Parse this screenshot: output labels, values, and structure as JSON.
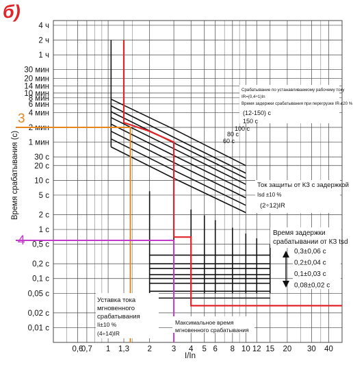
{
  "panel_letter": "б)",
  "annotations": {
    "orange_marker": "3",
    "purple_marker": "4"
  },
  "colors": {
    "red": "#e0242a",
    "orange": "#e8851a",
    "purple": "#c03ac8",
    "curve": "#111111",
    "grid": "#444444"
  },
  "chart_data": {
    "type": "line",
    "title": "",
    "xlabel": "I/In",
    "ylabel": "Время срабатывания (с)",
    "x_scale": "log",
    "y_scale": "log",
    "xlim": [
      0.4,
      50
    ],
    "ylim": [
      0.005,
      18000
    ],
    "x_ticks": [
      {
        "v": 0.6,
        "label": "0,6"
      },
      {
        "v": 0.7,
        "label": "0,7"
      },
      {
        "v": 1,
        "label": "1"
      },
      {
        "v": 1.3,
        "label": "1,3"
      },
      {
        "v": 2,
        "label": "2"
      },
      {
        "v": 3,
        "label": "3"
      },
      {
        "v": 4,
        "label": "4"
      },
      {
        "v": 5,
        "label": "5"
      },
      {
        "v": 6,
        "label": "6"
      },
      {
        "v": 8,
        "label": "8"
      },
      {
        "v": 10,
        "label": "10"
      },
      {
        "v": 12,
        "label": "12"
      },
      {
        "v": 15,
        "label": "15"
      },
      {
        "v": 20,
        "label": "20"
      },
      {
        "v": 30,
        "label": "30"
      },
      {
        "v": 40,
        "label": "40"
      }
    ],
    "y_ticks": [
      {
        "v": 14400,
        "label": "4 ч"
      },
      {
        "v": 7200,
        "label": "2 ч"
      },
      {
        "v": 3600,
        "label": "1 ч"
      },
      {
        "v": 1800,
        "label": "30 мин"
      },
      {
        "v": 1200,
        "label": "20 мин"
      },
      {
        "v": 840,
        "label": "14 мин"
      },
      {
        "v": 600,
        "label": "10 мин"
      },
      {
        "v": 480,
        "label": "8 мин"
      },
      {
        "v": 360,
        "label": "6 мин"
      },
      {
        "v": 240,
        "label": "4 мин"
      },
      {
        "v": 120,
        "label": "2 мин"
      },
      {
        "v": 60,
        "label": "1 мин"
      },
      {
        "v": 30,
        "label": "30 с"
      },
      {
        "v": 20,
        "label": "20 с"
      },
      {
        "v": 10,
        "label": "10 с"
      },
      {
        "v": 5,
        "label": "5 с"
      },
      {
        "v": 2,
        "label": "2 с"
      },
      {
        "v": 1,
        "label": "1 с"
      },
      {
        "v": 0.5,
        "label": "0,5 с"
      },
      {
        "v": 0.2,
        "label": "0,2 с"
      },
      {
        "v": 0.1,
        "label": "0,1 с"
      },
      {
        "v": 0.05,
        "label": "0,05 с"
      },
      {
        "v": 0.02,
        "label": "0,02 с"
      },
      {
        "v": 0.01,
        "label": "0,01 с"
      }
    ],
    "minor_x": [
      0.5,
      0.8,
      0.9,
      1.5,
      7,
      9,
      25,
      35,
      50
    ],
    "overload_series": [
      {
        "name": "150 с",
        "points": [
          [
            1.05,
            450
          ],
          [
            3,
            110
          ],
          [
            10,
            20
          ]
        ]
      },
      {
        "name": "100 с",
        "points": [
          [
            1.05,
            330
          ],
          [
            3,
            75
          ],
          [
            10,
            14
          ]
        ]
      },
      {
        "name": "80 с",
        "points": [
          [
            1.05,
            250
          ],
          [
            3,
            58
          ],
          [
            10,
            11
          ]
        ]
      },
      {
        "name": "60 с",
        "points": [
          [
            1.05,
            190
          ],
          [
            3,
            44
          ],
          [
            10,
            8.3
          ]
        ]
      },
      {
        "name": "",
        "points": [
          [
            1.05,
            140
          ],
          [
            3,
            32
          ],
          [
            10,
            6.1
          ]
        ]
      },
      {
        "name": "",
        "points": [
          [
            1.05,
            100
          ],
          [
            3,
            23
          ],
          [
            10,
            4.4
          ]
        ]
      },
      {
        "name": "",
        "points": [
          [
            1.05,
            70
          ],
          [
            3,
            16
          ],
          [
            10,
            3.1
          ]
        ]
      },
      {
        "name": "",
        "points": [
          [
            1.05,
            48
          ],
          [
            3,
            11
          ],
          [
            10,
            2.2
          ]
        ]
      }
    ],
    "overload_start": {
      "x_left": 1.05,
      "x_right": 1.3,
      "t_top": 7200
    },
    "short_delay_band": {
      "x_range": [
        2,
        15
      ],
      "t_upper": [
        0.3,
        0.2,
        0.1,
        0.08
      ],
      "t_lower": [
        0.16,
        0.12,
        0.055,
        0.04
      ]
    },
    "short_delay_steps_x": [
      2,
      3,
      4,
      5,
      6,
      8,
      10,
      12,
      15
    ],
    "instant_level": 0.028,
    "red_curve": [
      [
        1.3,
        7200
      ],
      [
        1.3,
        150
      ],
      [
        2,
        100
      ],
      [
        3,
        60
      ],
      [
        3,
        0.7
      ],
      [
        4,
        0.7
      ],
      [
        4,
        0.028
      ],
      [
        50,
        0.028
      ]
    ],
    "orange_guide": {
      "x": 1.45,
      "t": 120
    },
    "purple_guide": {
      "x": 3,
      "t": 0.6
    },
    "annotation_blocks": {
      "overload": {
        "line1": "Срабатывание по устанавливаемому рабочему току",
        "line2": "IR=(0,4÷1)In",
        "line3": "Время задержки срабатывания при перегрузке IR ±20 %",
        "line4": "(12-150) с",
        "labels": [
          "150 с",
          "100 с",
          "80 с",
          "60 с"
        ]
      },
      "short_delay": {
        "line1": "Ток защиты от КЗ с задержкой",
        "line2": "Isd ±10 %",
        "line3": "(2÷12)IR"
      },
      "delay_time": {
        "line1": "Время задержки",
        "line2": "срабатывании от КЗ tsd",
        "values": [
          "0,3±0,06 с",
          "0,2±0,04 с",
          "0,1±0,03 с",
          "0,08±0,02 с"
        ]
      },
      "instant": {
        "line1": "Уставка тока",
        "line2": "мгновенного",
        "line3": "срабатывания",
        "line4": "Ii±10 %",
        "line5": "(4÷14)IR"
      },
      "max_instant": {
        "line1": "Максимальное время",
        "line2": "мгновенного срабатывания"
      }
    }
  }
}
